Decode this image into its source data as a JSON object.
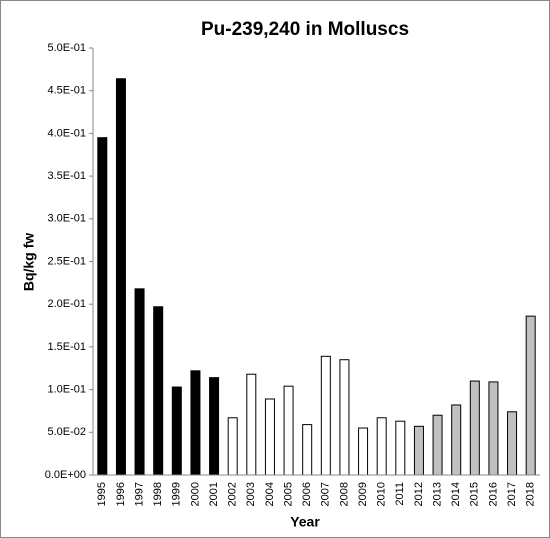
{
  "chart_data": {
    "type": "bar",
    "title": "Pu-239,240 in Molluscs",
    "x_label": "Year",
    "y_label": "Bq/kg fw",
    "categories": [
      "1995",
      "1996",
      "1997",
      "1998",
      "1999",
      "2000",
      "2001",
      "2002",
      "2003",
      "2004",
      "2005",
      "2006",
      "2007",
      "2008",
      "2009",
      "2010",
      "2011",
      "2012",
      "2013",
      "2014",
      "2015",
      "2016",
      "2017",
      "2018"
    ],
    "values": [
      0.395,
      0.464,
      0.218,
      0.197,
      0.103,
      0.122,
      0.114,
      0.067,
      0.118,
      0.089,
      0.104,
      0.059,
      0.139,
      0.135,
      0.055,
      0.067,
      0.063,
      0.057,
      0.07,
      0.082,
      0.11,
      0.109,
      0.074,
      0.186
    ],
    "colors": [
      "#000000",
      "#000000",
      "#000000",
      "#000000",
      "#000000",
      "#000000",
      "#000000",
      "#ffffff",
      "#ffffff",
      "#ffffff",
      "#ffffff",
      "#ffffff",
      "#ffffff",
      "#ffffff",
      "#ffffff",
      "#ffffff",
      "#ffffff",
      "#c0c0c0",
      "#c0c0c0",
      "#c0c0c0",
      "#c0c0c0",
      "#c0c0c0",
      "#c0c0c0",
      "#c0c0c0"
    ],
    "ylim": [
      0,
      0.5
    ],
    "yticks": [
      {
        "value": 0,
        "label": "0.0E+00"
      },
      {
        "value": 0.05,
        "label": "5.0E-02"
      },
      {
        "value": 0.1,
        "label": "1.0E-01"
      },
      {
        "value": 0.15,
        "label": "1.5E-01"
      },
      {
        "value": 0.2,
        "label": "2.0E-01"
      },
      {
        "value": 0.25,
        "label": "2.5E-01"
      },
      {
        "value": 0.3,
        "label": "3.0E-01"
      },
      {
        "value": 0.35,
        "label": "3.5E-01"
      },
      {
        "value": 0.4,
        "label": "4.0E-01"
      },
      {
        "value": 0.45,
        "label": "4.5E-01"
      },
      {
        "value": 0.5,
        "label": "5.0E-01"
      }
    ],
    "grid": false
  }
}
